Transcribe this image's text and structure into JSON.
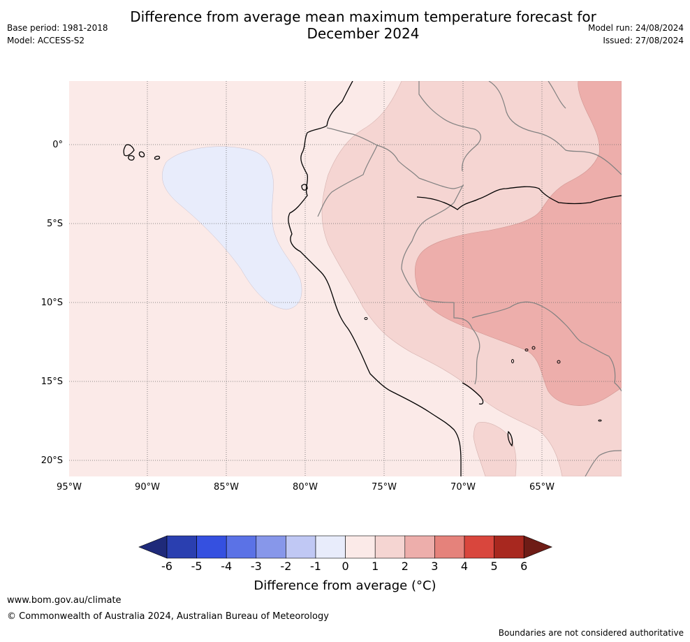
{
  "title_line1": "Difference from average mean maximum temperature forecast for",
  "title_line2": "December 2024",
  "base_period": "Base period: 1981-2018",
  "model": "Model: ACCESS-S2",
  "model_run": "Model run: 24/08/2024",
  "issued": "Issued: 27/08/2024",
  "latitude_labels": [
    "0°",
    "5°S",
    "10°S",
    "15°S",
    "20°S"
  ],
  "longitude_labels": [
    "95°W",
    "90°W",
    "85°W",
    "80°W",
    "75°W",
    "70°W",
    "65°W"
  ],
  "colorbar": {
    "ticks": [
      "-6",
      "-5",
      "-4",
      "-3",
      "-2",
      "-1",
      "0",
      "1",
      "2",
      "3",
      "4",
      "5",
      "6"
    ],
    "colors": [
      "#1f2a7a",
      "#2a3fb0",
      "#3550e0",
      "#5b72e6",
      "#8797ea",
      "#c0c8f4",
      "#e8ecfb",
      "#fbeae8",
      "#f5d5d2",
      "#edaeab",
      "#e5827b",
      "#d9463d",
      "#a8281f",
      "#6e1c16"
    ],
    "label": "Difference from average ($^\\circ$C)",
    "label_display": "Difference from average (°C)"
  },
  "website": "www.bom.gov.au/climate",
  "copyright": "© Commonwealth of Australia 2024, Australian Bureau of Meteorology",
  "disclaimer": "Boundaries are not considered authoritative"
}
